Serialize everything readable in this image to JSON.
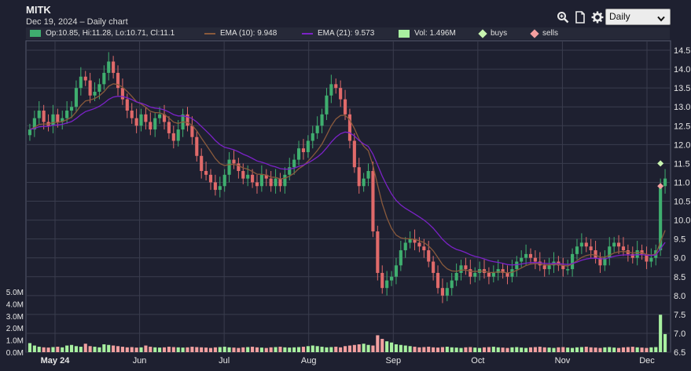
{
  "title": "MITK",
  "subtitle": "Dec 19, 2024 – Daily chart",
  "period_select": {
    "selected": "Daily"
  },
  "toolbar_icons": [
    "zoom-icon",
    "document-icon",
    "gear-icon"
  ],
  "legend": {
    "ohlc": "Op:10.85, Hi:11.28, Lo:10.71, Cl:11.1",
    "ema10": "EMA (10): 9.948",
    "ema21": "EMA (21): 9.573",
    "vol": "Vol: 1.496M",
    "buys": "buys",
    "sells": "sells"
  },
  "colors": {
    "background": "#1e2030",
    "grid": "#3a3d4e",
    "up": "#3fae6f",
    "down": "#e06a6a",
    "ema10": "#8a5a3c",
    "ema21": "#7b22c7",
    "vol_up": "#a8f0a0",
    "vol_down": "#f2a0a0",
    "buys": "#c8f5b0",
    "sells": "#f5a0a0"
  },
  "chart_data": {
    "type": "candlestick",
    "title": "MITK",
    "x_labels": [
      "May 24",
      "Jun",
      "Jul",
      "Aug",
      "Sep",
      "Oct",
      "Nov",
      "Dec"
    ],
    "y_ticks": [
      "6.5",
      "7.0",
      "7.5",
      "8.0",
      "8.5",
      "9.0",
      "9.5",
      "10.0",
      "10.5",
      "11.0",
      "11.5",
      "12.0",
      "12.5",
      "13.0",
      "13.5",
      "14.0",
      "14.5"
    ],
    "ylim": [
      6.5,
      14.75
    ],
    "volume_ticks": [
      "0.0M",
      "1.0M",
      "2.0M",
      "3.0M",
      "4.0M",
      "5.0M"
    ],
    "volume_lim": [
      0,
      5.0
    ],
    "closes": [
      12.4,
      12.7,
      12.9,
      12.6,
      12.5,
      12.8,
      12.6,
      12.7,
      12.9,
      13.0,
      13.5,
      13.8,
      13.7,
      13.3,
      13.4,
      13.6,
      13.9,
      14.2,
      13.9,
      13.5,
      13.2,
      12.9,
      12.7,
      12.5,
      12.8,
      12.6,
      12.4,
      12.7,
      12.8,
      12.6,
      12.3,
      12.1,
      12.4,
      12.8,
      12.5,
      12.2,
      11.7,
      11.3,
      11.2,
      11.0,
      10.8,
      10.9,
      11.2,
      11.6,
      11.5,
      11.3,
      11.1,
      11.2,
      11.0,
      10.9,
      11.2,
      11.1,
      10.9,
      11.1,
      10.9,
      11.2,
      11.4,
      11.6,
      11.9,
      11.8,
      12.1,
      12.3,
      12.5,
      12.8,
      13.3,
      13.6,
      13.5,
      13.2,
      12.8,
      12.1,
      11.4,
      10.9,
      11.1,
      11.3,
      9.7,
      8.6,
      8.2,
      8.4,
      8.5,
      8.8,
      9.2,
      9.4,
      9.5,
      9.4,
      9.3,
      9.2,
      8.9,
      8.6,
      8.2,
      8.0,
      8.2,
      8.4,
      8.6,
      8.8,
      8.7,
      8.5,
      8.6,
      8.7,
      8.6,
      8.5,
      8.6,
      8.7,
      8.6,
      8.5,
      8.7,
      8.9,
      9.0,
      9.1,
      9.0,
      8.9,
      8.8,
      8.7,
      8.8,
      8.9,
      8.8,
      8.7,
      8.7,
      9.1,
      9.3,
      9.4,
      9.3,
      9.2,
      9.0,
      8.8,
      9.0,
      9.3,
      9.4,
      9.3,
      9.2,
      9.1,
      9.0,
      9.2,
      9.1,
      8.9,
      9.0,
      9.2,
      10.9,
      11.1
    ],
    "volumes": [
      0.75,
      0.55,
      0.45,
      0.4,
      0.38,
      0.42,
      0.45,
      0.4,
      0.55,
      0.6,
      0.5,
      0.45,
      0.7,
      0.5,
      0.45,
      0.4,
      0.65,
      0.6,
      0.55,
      0.5,
      0.45,
      0.4,
      0.42,
      0.38,
      0.4,
      0.55,
      0.45,
      0.4,
      0.38,
      0.4,
      0.45,
      0.42,
      0.4,
      0.38,
      0.4,
      0.45,
      0.42,
      0.4,
      0.38,
      0.35,
      0.4,
      0.42,
      0.45,
      0.4,
      0.38,
      0.35,
      0.4,
      0.42,
      0.45,
      0.4,
      0.38,
      0.35,
      0.4,
      0.42,
      0.45,
      0.4,
      0.38,
      0.4,
      0.42,
      0.45,
      0.5,
      0.55,
      0.5,
      0.45,
      0.4,
      0.42,
      0.45,
      0.4,
      0.5,
      0.55,
      0.6,
      0.65,
      0.7,
      0.6,
      0.55,
      1.4,
      1.1,
      0.9,
      0.8,
      0.65,
      0.6,
      0.55,
      0.5,
      0.45,
      0.4,
      0.42,
      0.45,
      0.4,
      0.38,
      0.42,
      0.45,
      0.4,
      0.38,
      0.35,
      0.4,
      0.42,
      0.38,
      0.35,
      0.4,
      0.42,
      0.45,
      0.4,
      0.38,
      0.35,
      0.4,
      0.42,
      0.38,
      0.35,
      0.4,
      0.42,
      0.45,
      0.4,
      0.38,
      0.35,
      0.4,
      0.42,
      0.38,
      0.35,
      0.4,
      0.42,
      0.45,
      0.4,
      0.38,
      0.35,
      0.4,
      0.42,
      0.38,
      0.35,
      0.4,
      0.42,
      0.45,
      0.4,
      0.38,
      0.35,
      0.4,
      0.42,
      3.1,
      1.5
    ],
    "buys": [
      11.5
    ],
    "sells": [
      10.9
    ],
    "grid": true
  }
}
